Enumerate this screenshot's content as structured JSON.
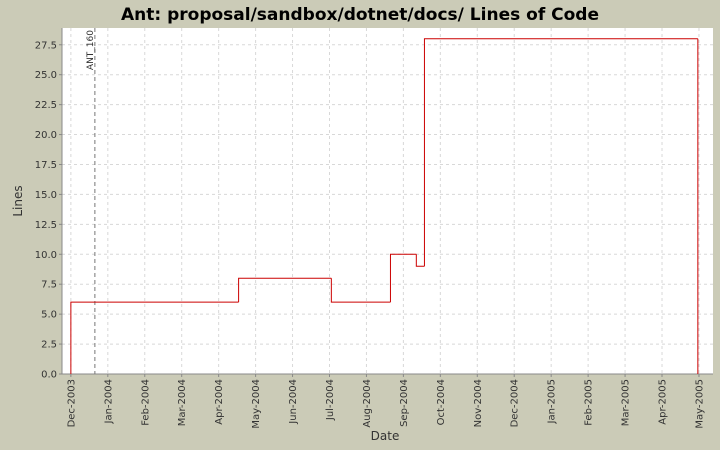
{
  "chart_data": {
    "type": "step",
    "title": "Ant: proposal/sandbox/dotnet/docs/ Lines of Code",
    "x_label": "Date",
    "y_label": "Lines",
    "series": [
      {
        "name": "Lines",
        "color": "#cc0000",
        "x": [
          0,
          0,
          4.54,
          7.05,
          8.65,
          9.35,
          9.57,
          16.97
        ],
        "values": [
          0,
          6,
          8,
          6,
          10,
          9,
          28,
          0
        ]
      }
    ],
    "markers": [
      {
        "x": 0.65,
        "label": "ANT_160"
      }
    ],
    "xlim": [
      -0.24,
      17.38
    ],
    "xticks": [
      {
        "value": 0,
        "label": "Dec-2003"
      },
      {
        "value": 1,
        "label": "Jan-2004"
      },
      {
        "value": 2,
        "label": "Feb-2004"
      },
      {
        "value": 3,
        "label": "Mar-2004"
      },
      {
        "value": 4,
        "label": "Apr-2004"
      },
      {
        "value": 5,
        "label": "May-2004"
      },
      {
        "value": 6,
        "label": "Jun-2004"
      },
      {
        "value": 7,
        "label": "Jul-2004"
      },
      {
        "value": 8,
        "label": "Aug-2004"
      },
      {
        "value": 9,
        "label": "Sep-2004"
      },
      {
        "value": 10,
        "label": "Oct-2004"
      },
      {
        "value": 11,
        "label": "Nov-2004"
      },
      {
        "value": 12,
        "label": "Dec-2004"
      },
      {
        "value": 13,
        "label": "Jan-2005"
      },
      {
        "value": 14,
        "label": "Feb-2005"
      },
      {
        "value": 15,
        "label": "Mar-2005"
      },
      {
        "value": 16,
        "label": "Apr-2005"
      },
      {
        "value": 17,
        "label": "May-2005"
      }
    ],
    "ylim": [
      0,
      28.9
    ],
    "yticks": [
      {
        "value": 0,
        "label": "0.0"
      },
      2.5,
      {
        "value": 5,
        "label": "5.0"
      },
      7.5,
      {
        "value": 10,
        "label": "10.0"
      },
      12.5,
      {
        "value": 15,
        "label": "15.0"
      },
      17.5,
      {
        "value": 20,
        "label": "20.0"
      },
      22.5,
      {
        "value": 25,
        "label": "25.0"
      },
      27.5
    ],
    "grid": true
  }
}
